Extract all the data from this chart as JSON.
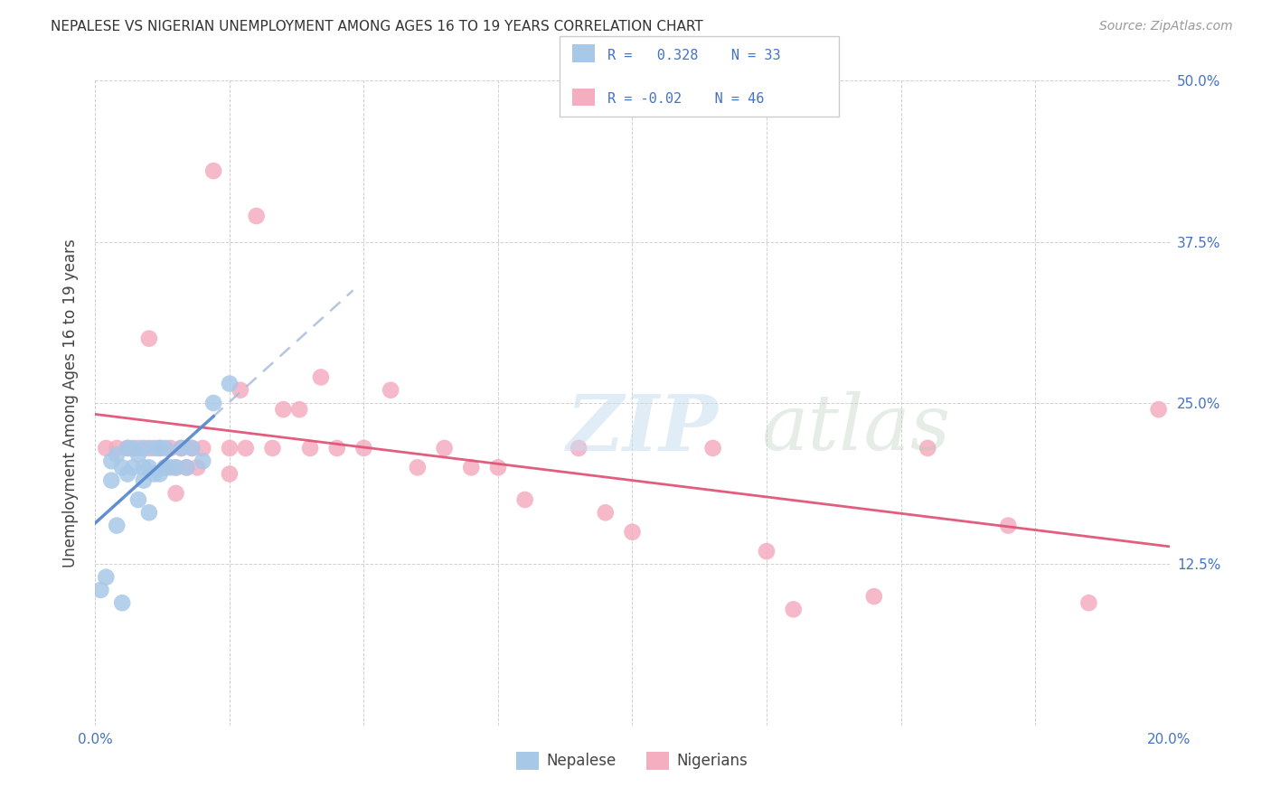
{
  "title": "NEPALESE VS NIGERIAN UNEMPLOYMENT AMONG AGES 16 TO 19 YEARS CORRELATION CHART",
  "source": "Source: ZipAtlas.com",
  "ylabel": "Unemployment Among Ages 16 to 19 years",
  "xlim": [
    0.0,
    0.2
  ],
  "ylim": [
    0.0,
    0.5
  ],
  "ytick_positions": [
    0.0,
    0.125,
    0.25,
    0.375,
    0.5
  ],
  "ytick_labels": [
    "",
    "12.5%",
    "25.0%",
    "37.5%",
    "50.0%"
  ],
  "xtick_positions": [
    0.0,
    0.025,
    0.05,
    0.075,
    0.1,
    0.125,
    0.15,
    0.175,
    0.2
  ],
  "xtick_labels": [
    "0.0%",
    "",
    "",
    "",
    "",
    "",
    "",
    "",
    "20.0%"
  ],
  "nepalese_R": 0.328,
  "nepalese_N": 33,
  "nigerian_R": -0.02,
  "nigerian_N": 46,
  "nepalese_color": "#a8c8e8",
  "nigerian_color": "#f5adc0",
  "nepalese_line_color": "#5588cc",
  "nigerian_line_color": "#e05578",
  "nepalese_dash_color": "#aabbdd",
  "background_color": "#ffffff",
  "nepalese_x": [
    0.001,
    0.002,
    0.003,
    0.003,
    0.004,
    0.004,
    0.005,
    0.005,
    0.006,
    0.006,
    0.007,
    0.007,
    0.008,
    0.008,
    0.009,
    0.009,
    0.009,
    0.01,
    0.01,
    0.011,
    0.011,
    0.012,
    0.012,
    0.013,
    0.013,
    0.014,
    0.015,
    0.016,
    0.017,
    0.018,
    0.02,
    0.022,
    0.025
  ],
  "nepalese_y": [
    0.105,
    0.115,
    0.19,
    0.205,
    0.155,
    0.21,
    0.095,
    0.2,
    0.195,
    0.215,
    0.2,
    0.215,
    0.175,
    0.21,
    0.19,
    0.2,
    0.215,
    0.165,
    0.2,
    0.195,
    0.215,
    0.195,
    0.215,
    0.2,
    0.215,
    0.2,
    0.2,
    0.215,
    0.2,
    0.215,
    0.205,
    0.25,
    0.265
  ],
  "nigerian_x": [
    0.002,
    0.004,
    0.006,
    0.008,
    0.01,
    0.01,
    0.012,
    0.013,
    0.014,
    0.015,
    0.015,
    0.016,
    0.017,
    0.018,
    0.019,
    0.02,
    0.022,
    0.025,
    0.025,
    0.027,
    0.028,
    0.03,
    0.033,
    0.035,
    0.038,
    0.04,
    0.042,
    0.045,
    0.05,
    0.055,
    0.06,
    0.065,
    0.07,
    0.075,
    0.08,
    0.09,
    0.095,
    0.1,
    0.115,
    0.125,
    0.13,
    0.145,
    0.155,
    0.17,
    0.185,
    0.198
  ],
  "nigerian_y": [
    0.215,
    0.215,
    0.215,
    0.215,
    0.3,
    0.215,
    0.215,
    0.2,
    0.215,
    0.2,
    0.18,
    0.215,
    0.2,
    0.215,
    0.2,
    0.215,
    0.43,
    0.215,
    0.195,
    0.26,
    0.215,
    0.395,
    0.215,
    0.245,
    0.245,
    0.215,
    0.27,
    0.215,
    0.215,
    0.26,
    0.2,
    0.215,
    0.2,
    0.2,
    0.175,
    0.215,
    0.165,
    0.15,
    0.215,
    0.135,
    0.09,
    0.1,
    0.215,
    0.155,
    0.095,
    0.245
  ]
}
